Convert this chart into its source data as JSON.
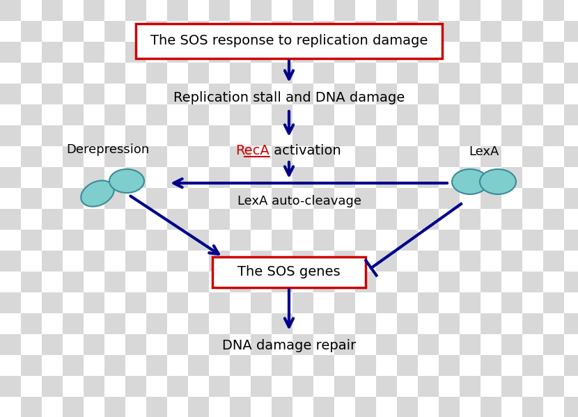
{
  "bg_checker_color1": "#d8d8d8",
  "bg_checker_color2": "#ffffff",
  "title_box_text": "The SOS response to replication damage",
  "step2_text": "Replication stall and DNA damage",
  "step3_text_reca": "RecA",
  "step3_text_rest": " activation",
  "step4_label": "LexA auto-cleavage",
  "step5_box_text": "The SOS genes",
  "step6_text": "DNA damage repair",
  "derepression_text": "Derepression",
  "lexa_text": "LexA",
  "ellipse_color": "#7ECECE",
  "ellipse_edge": "#3a8a9a",
  "reca_color": "#cc0000",
  "box_border_color": "#cc0000",
  "dark_blue": "#00008B",
  "checker_size": 30
}
